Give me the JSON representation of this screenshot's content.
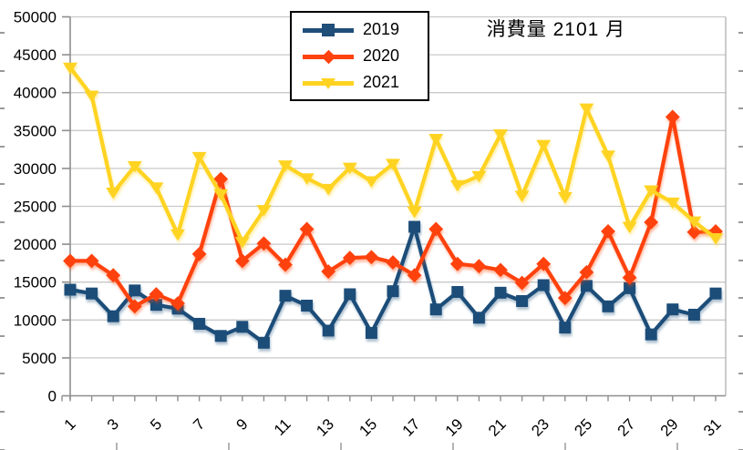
{
  "title": "消費量 2101 月",
  "legend": {
    "position": "top-center",
    "items": [
      {
        "label": "2019",
        "marker": "square",
        "color": "#1F4E79"
      },
      {
        "label": "2020",
        "marker": "diamond",
        "color": "#FF420E"
      },
      {
        "label": "2021",
        "marker": "triangle-down",
        "color": "#FFD320"
      }
    ]
  },
  "axes": {
    "y_tick_labels": [
      "0",
      "5000",
      "10000",
      "15000",
      "20000",
      "25000",
      "30000",
      "35000",
      "40000",
      "45000",
      "50000"
    ],
    "x_tick_labels": [
      "1",
      "3",
      "5",
      "7",
      "9",
      "11",
      "13",
      "15",
      "17",
      "19",
      "21",
      "23",
      "25",
      "27",
      "29",
      "31"
    ]
  },
  "colors": {
    "series_2019": "#1F4E79",
    "series_2020": "#FF420E",
    "series_2021": "#FFD320",
    "gridline": "#c9c9c9",
    "plot_border": "#b0b0b0",
    "axis_line": "#8e8e8e",
    "text": "#000000",
    "background": "#ffffff"
  },
  "chart_data": {
    "type": "line",
    "title": "消費量 2101 月",
    "xlabel": "",
    "ylabel": "",
    "x": [
      1,
      2,
      3,
      4,
      5,
      6,
      7,
      8,
      9,
      10,
      11,
      12,
      13,
      14,
      15,
      16,
      17,
      18,
      19,
      20,
      21,
      22,
      23,
      24,
      25,
      26,
      27,
      28,
      29,
      30,
      31
    ],
    "xlim": [
      1,
      31
    ],
    "ylim": [
      0,
      50000
    ],
    "y_ticks": [
      0,
      5000,
      10000,
      15000,
      20000,
      25000,
      30000,
      35000,
      40000,
      45000,
      50000
    ],
    "x_labeled_ticks": [
      1,
      3,
      5,
      7,
      9,
      11,
      13,
      15,
      17,
      19,
      21,
      23,
      25,
      27,
      29,
      31
    ],
    "grid": true,
    "legend_position": "top-center",
    "series": [
      {
        "name": "2019",
        "color": "#1F4E79",
        "marker": "square",
        "values": [
          14000,
          13500,
          10500,
          13900,
          12000,
          11500,
          9500,
          7900,
          9100,
          7000,
          13200,
          11900,
          8600,
          13400,
          8300,
          13800,
          22300,
          11400,
          13700,
          10300,
          13600,
          12500,
          14600,
          9000,
          14500,
          11800,
          14200,
          8100,
          11400,
          10700,
          13500
        ]
      },
      {
        "name": "2020",
        "color": "#FF420E",
        "marker": "diamond",
        "values": [
          17800,
          17800,
          15900,
          11800,
          13400,
          12200,
          18700,
          28600,
          17800,
          20100,
          17300,
          22000,
          16400,
          18200,
          18300,
          17600,
          15900,
          22000,
          17400,
          17100,
          16600,
          14900,
          17400,
          12900,
          16300,
          21700,
          15600,
          22900,
          36800,
          21600,
          21700
        ]
      },
      {
        "name": "2021",
        "color": "#FFD320",
        "marker": "triangle-down",
        "values": [
          43300,
          39600,
          26800,
          30300,
          27500,
          21300,
          31500,
          26600,
          20300,
          24500,
          30400,
          28700,
          27300,
          30100,
          28300,
          30600,
          24300,
          33900,
          27800,
          29000,
          34500,
          26400,
          33100,
          26200,
          37900,
          31700,
          22300,
          27100,
          25500,
          23000,
          20800
        ]
      }
    ]
  }
}
